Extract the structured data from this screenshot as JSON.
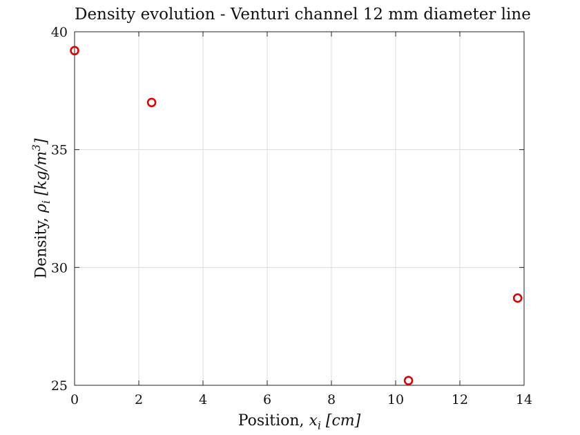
{
  "chart_data": {
    "type": "scatter",
    "title": "Density evolution - Venturi channel 12 mm diameter line",
    "xlabel": {
      "prefix": "Position, ",
      "var": "x",
      "sub": "i",
      "unit": "[cm]"
    },
    "ylabel": {
      "prefix": "Density, ",
      "var": "ρ",
      "sub": "i",
      "unit_open": "[kg/m",
      "unit_sup": "3",
      "unit_close": "]"
    },
    "xlim": [
      0,
      14
    ],
    "ylim": [
      25,
      40
    ],
    "xticks": [
      "0",
      "2",
      "4",
      "6",
      "8",
      "10",
      "12",
      "14"
    ],
    "yticks": [
      "25",
      "30",
      "35",
      "40"
    ],
    "grid": true,
    "marker": "open-circle",
    "color": "#e00000",
    "x": [
      0.0,
      2.4,
      10.4,
      13.8
    ],
    "y": [
      39.2,
      37.0,
      25.2,
      28.7
    ]
  }
}
